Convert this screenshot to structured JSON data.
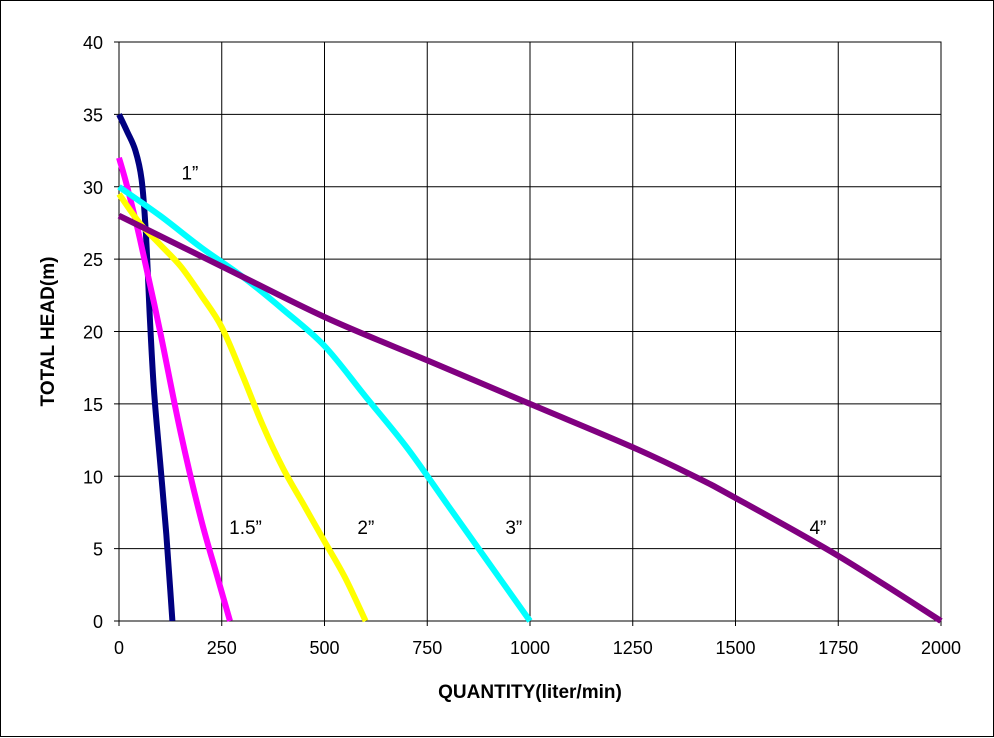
{
  "chart_data": {
    "type": "line",
    "title": "",
    "xlabel": "QUANTITY(liter/min)",
    "ylabel": "TOTAL HEAD(m)",
    "xlim": [
      0,
      2000
    ],
    "ylim": [
      0,
      40
    ],
    "xticks": [
      0,
      250,
      500,
      750,
      1000,
      1250,
      1500,
      1750,
      2000
    ],
    "yticks": [
      0,
      5,
      10,
      15,
      20,
      25,
      30,
      35,
      40
    ],
    "grid": true,
    "legend": "none",
    "series": [
      {
        "name": "1”",
        "color": "#000080",
        "points": [
          [
            0,
            35
          ],
          [
            20,
            33.8
          ],
          [
            40,
            32.5
          ],
          [
            55,
            30.5
          ],
          [
            65,
            27
          ],
          [
            75,
            21
          ],
          [
            85,
            16
          ],
          [
            100,
            11
          ],
          [
            115,
            6
          ],
          [
            125,
            2
          ],
          [
            130,
            0
          ]
        ],
        "label_at": [
          152,
          31
        ]
      },
      {
        "name": "1.5”",
        "color": "#ff00ff",
        "points": [
          [
            0,
            32
          ],
          [
            20,
            30
          ],
          [
            50,
            26.5
          ],
          [
            100,
            20
          ],
          [
            150,
            13
          ],
          [
            200,
            7
          ],
          [
            240,
            3
          ],
          [
            270,
            0
          ]
        ],
        "label_at": [
          268,
          6.5
        ]
      },
      {
        "name": "2”",
        "color": "#ffff00",
        "points": [
          [
            0,
            29.5
          ],
          [
            50,
            27.5
          ],
          [
            100,
            26
          ],
          [
            150,
            24.5
          ],
          [
            200,
            22.5
          ],
          [
            250,
            20.3
          ],
          [
            300,
            17
          ],
          [
            350,
            13.5
          ],
          [
            400,
            10.5
          ],
          [
            450,
            8
          ],
          [
            500,
            5.5
          ],
          [
            550,
            3
          ],
          [
            600,
            0
          ]
        ],
        "label_at": [
          580,
          6.5
        ]
      },
      {
        "name": "3”",
        "color": "#00ffff",
        "points": [
          [
            0,
            30
          ],
          [
            100,
            28
          ],
          [
            200,
            25.8
          ],
          [
            300,
            23.8
          ],
          [
            400,
            21.5
          ],
          [
            500,
            19
          ],
          [
            600,
            15.5
          ],
          [
            700,
            12
          ],
          [
            800,
            8
          ],
          [
            900,
            4
          ],
          [
            1000,
            0
          ]
        ],
        "label_at": [
          940,
          6.5
        ]
      },
      {
        "name": "4”",
        "color": "#800080",
        "points": [
          [
            0,
            28
          ],
          [
            250,
            24.5
          ],
          [
            500,
            21
          ],
          [
            750,
            18
          ],
          [
            1000,
            15
          ],
          [
            1250,
            12
          ],
          [
            1400,
            10
          ],
          [
            1500,
            8.5
          ],
          [
            1750,
            4.5
          ],
          [
            2000,
            0
          ]
        ],
        "label_at": [
          1680,
          6.5
        ]
      }
    ]
  }
}
